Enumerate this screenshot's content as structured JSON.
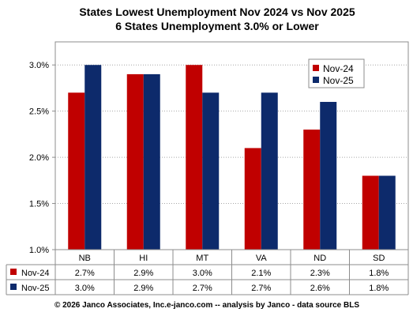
{
  "chart_data": {
    "type": "bar",
    "title": "States Lowest Unemployment Nov 2024 vs Nov 2025",
    "subtitle": "6 States  Unemployment 3.0% or Lower",
    "categories": [
      "NB",
      "HI",
      "MT",
      "VA",
      "ND",
      "SD"
    ],
    "series": [
      {
        "name": "Nov-24",
        "color": "#c00000",
        "values": [
          2.7,
          2.9,
          3.0,
          2.1,
          2.3,
          1.8
        ],
        "labels": [
          "2.7%",
          "2.9%",
          "3.0%",
          "2.1%",
          "2.3%",
          "1.8%"
        ]
      },
      {
        "name": "Nov-25",
        "color": "#0d2a6b",
        "values": [
          3.0,
          2.9,
          2.7,
          2.7,
          2.6,
          1.8
        ],
        "labels": [
          "3.0%",
          "2.9%",
          "2.7%",
          "2.7%",
          "2.6%",
          "1.8%"
        ]
      }
    ],
    "ylim": [
      1.0,
      3.25
    ],
    "yticks": [
      1.0,
      1.5,
      2.0,
      2.5,
      3.0
    ],
    "ytick_labels": [
      "1.0%",
      "1.5%",
      "2.0%",
      "2.5%",
      "3.0%"
    ],
    "grid": true,
    "legend_position": "top-right",
    "data_table": true
  },
  "footer": "© 2026 Janco Associates, Inc.e-janco.com -- analysis by Janco - data source BLS"
}
